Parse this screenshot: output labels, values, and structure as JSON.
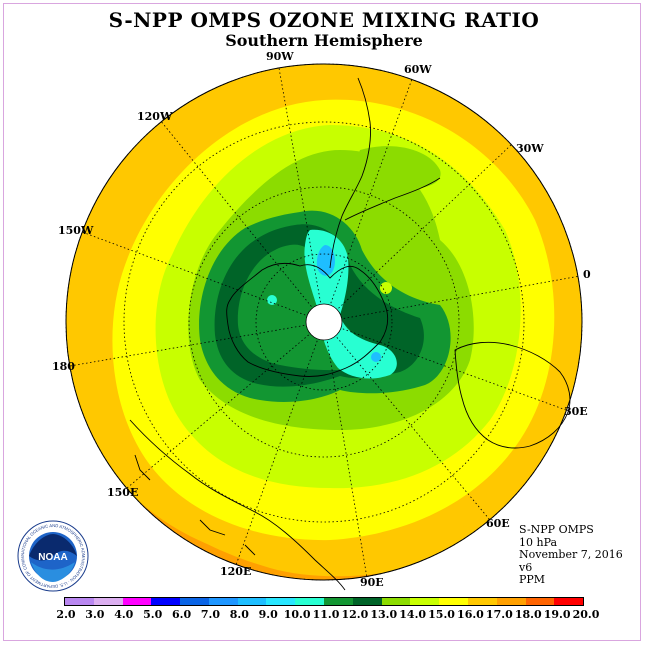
{
  "title": "S-NPP OMPS OZONE MIXING RATIO",
  "subtitle": "Southern Hemisphere",
  "longitude_labels": [
    "90W",
    "60W",
    "30W",
    "0",
    "30E",
    "60E",
    "90E",
    "120E",
    "150E",
    "180",
    "150W",
    "120W"
  ],
  "info": {
    "instrument": "S-NPP OMPS",
    "level": "10 hPa",
    "date": "November 7, 2016",
    "version": "v6",
    "units": "PPM"
  },
  "colorbar": {
    "ticks": [
      "2.0",
      "3.0",
      "4.0",
      "5.0",
      "6.0",
      "7.0",
      "8.0",
      "9.0",
      "10.0",
      "11.0",
      "12.0",
      "13.0",
      "14.0",
      "15.0",
      "16.0",
      "17.0",
      "18.0",
      "19.0",
      "20.0"
    ],
    "colors": [
      "#b987f0",
      "#dcaff0",
      "#ff00ff",
      "#0000ff",
      "#0a64e6",
      "#1e96ff",
      "#1ebeff",
      "#28e6ff",
      "#28ffd2",
      "#129632",
      "#006428",
      "#8cdc00",
      "#c8ff00",
      "#ffff00",
      "#ffc800",
      "#ffa000",
      "#ff6400",
      "#ff0000",
      "#8b5a2b"
    ]
  },
  "map_colors": {
    "yellow_orange": "#ffc800",
    "orange": "#ffa000",
    "dark_orange": "#ff6400",
    "yellow": "#ffff00",
    "yellow_green": "#c8ff00",
    "light_green": "#8cdc00",
    "green": "#129632",
    "dark_green": "#006428",
    "cyan": "#28ffd2",
    "light_cyan": "#28e6ff",
    "light_blue": "#1ebeff"
  },
  "logo": {
    "text": "NOAA",
    "ring_text": "NATIONAL OCEANIC AND ATMOSPHERIC ADMINISTRATION · U.S. DEPARTMENT OF COMMERCE"
  }
}
